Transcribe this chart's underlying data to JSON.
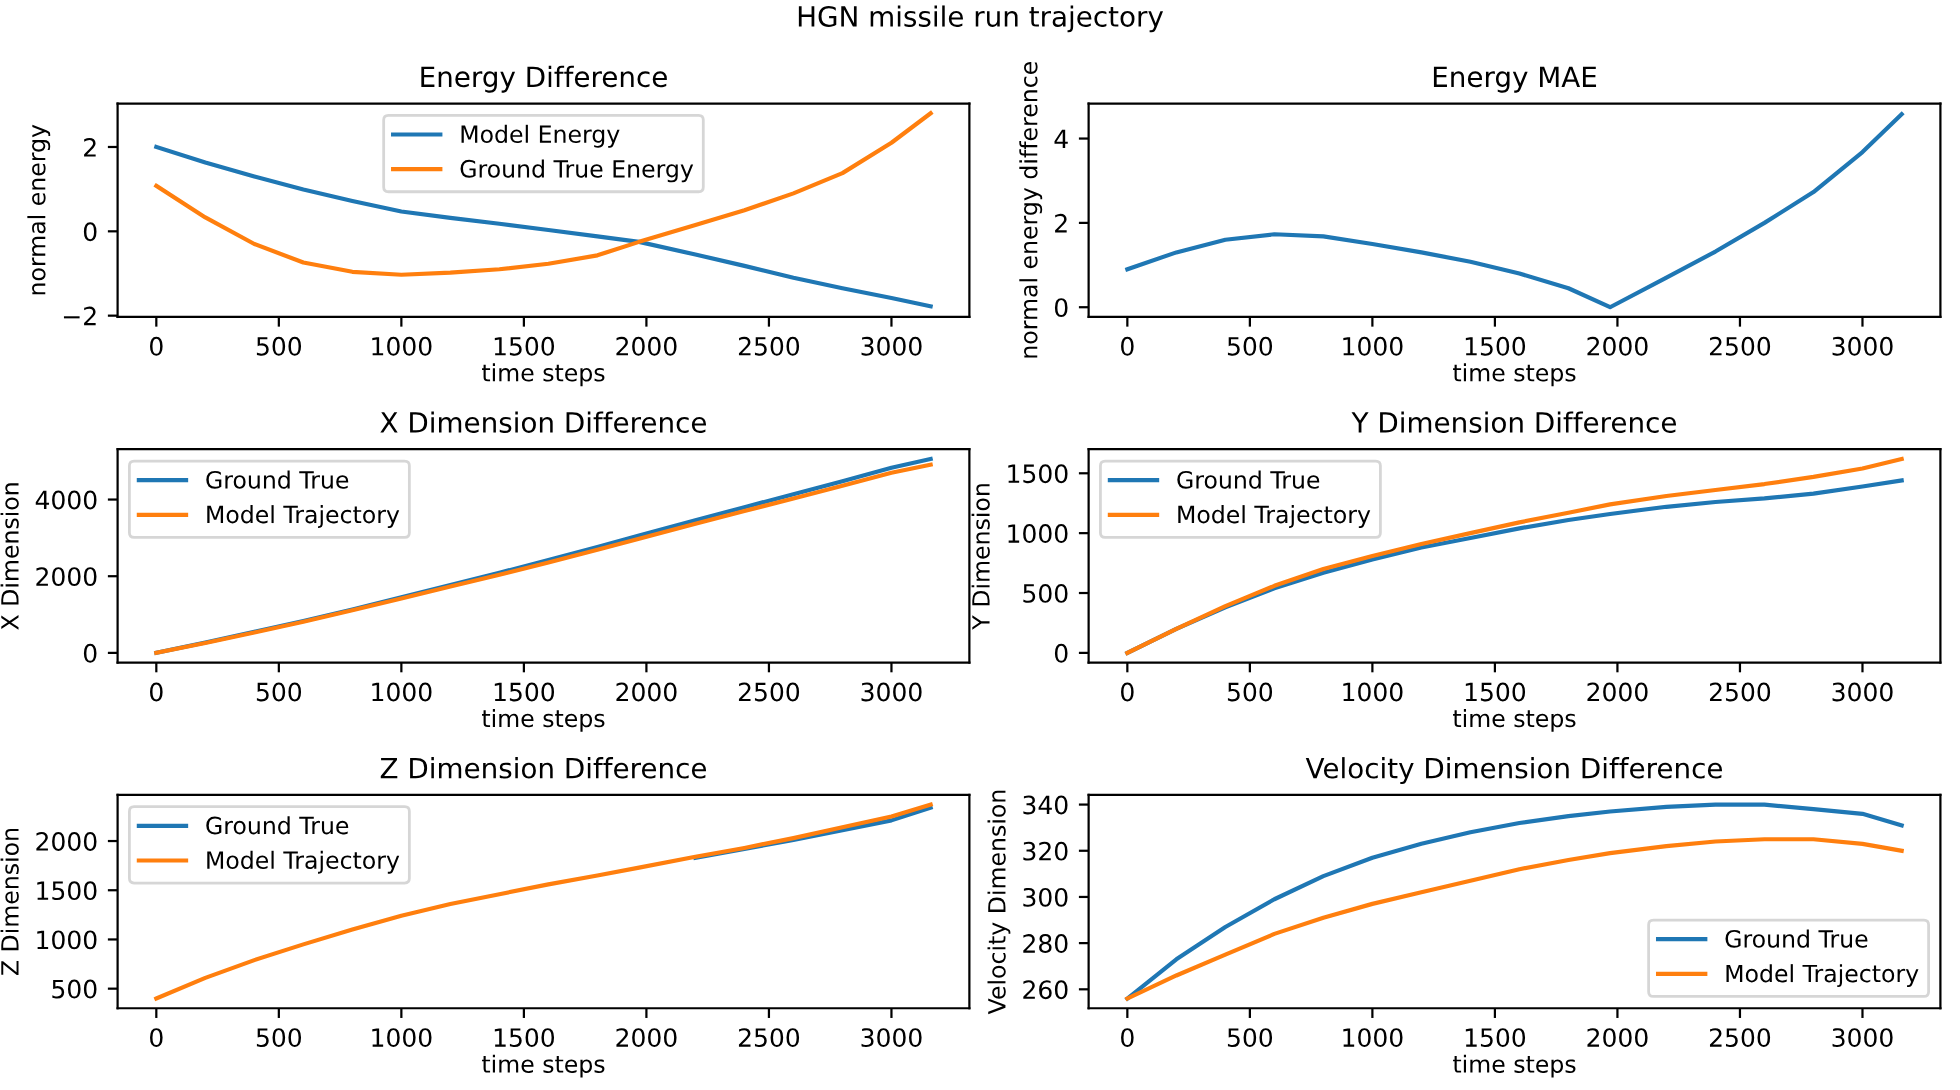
{
  "chart_data": [
    {
      "type": "line",
      "title": "Energy Difference",
      "xlabel": "time steps",
      "ylabel": "normal energy",
      "annotations": [
        "HGN missile run trajectory"
      ],
      "legend": "top",
      "xlim": [
        -158,
        3318
      ],
      "xticks": [
        0,
        500,
        1000,
        1500,
        2000,
        2500,
        3000
      ],
      "ylim": [
        -2.03,
        3.03
      ],
      "yticks": [
        {
          "value": -2,
          "label": "−2"
        },
        0,
        2
      ],
      "x": [
        0,
        200,
        400,
        600,
        800,
        1000,
        1200,
        1400,
        1600,
        1800,
        1970,
        2200,
        2400,
        2600,
        2800,
        3000,
        3160
      ],
      "series": [
        {
          "name": "Model Energy",
          "color": "#1f77b4",
          "values": [
            2.0,
            1.63,
            1.3,
            0.99,
            0.72,
            0.47,
            0.32,
            0.18,
            0.03,
            -0.12,
            -0.25,
            -0.55,
            -0.82,
            -1.1,
            -1.35,
            -1.58,
            -1.78
          ]
        },
        {
          "name": "Ground True Energy",
          "color": "#ff7f0e",
          "values": [
            1.08,
            0.33,
            -0.3,
            -0.74,
            -0.96,
            -1.03,
            -0.98,
            -0.9,
            -0.77,
            -0.57,
            -0.25,
            0.15,
            0.5,
            0.9,
            1.38,
            2.1,
            2.8
          ]
        }
      ]
    },
    {
      "type": "line",
      "title": "Energy MAE",
      "xlabel": "time steps",
      "ylabel": "normal energy difference",
      "xlim": [
        -158,
        3318
      ],
      "xticks": [
        0,
        500,
        1000,
        1500,
        2000,
        2500,
        3000
      ],
      "ylim": [
        -0.23,
        4.83
      ],
      "yticks": [
        0,
        2,
        4
      ],
      "x": [
        0,
        200,
        400,
        600,
        800,
        1000,
        1200,
        1400,
        1600,
        1800,
        1970,
        2200,
        2400,
        2600,
        2800,
        3000,
        3160
      ],
      "series": [
        {
          "color": "#1f77b4",
          "values": [
            0.9,
            1.3,
            1.6,
            1.73,
            1.68,
            1.5,
            1.3,
            1.08,
            0.8,
            0.45,
            0.0,
            0.7,
            1.32,
            2.0,
            2.73,
            3.68,
            4.58
          ]
        }
      ]
    },
    {
      "type": "line",
      "title": "X Dimension Difference",
      "xlabel": "time steps",
      "ylabel": "X Dimension",
      "legend": "top left",
      "xlim": [
        -158,
        3318
      ],
      "xticks": [
        0,
        500,
        1000,
        1500,
        2000,
        2500,
        3000
      ],
      "ylim": [
        -253,
        5313
      ],
      "yticks": [
        0,
        2000,
        4000
      ],
      "x": [
        0,
        200,
        400,
        600,
        800,
        1000,
        1200,
        1400,
        1600,
        1800,
        1970,
        2200,
        2400,
        2600,
        2800,
        3000,
        3160
      ],
      "series": [
        {
          "name": "Ground True",
          "color": "#1f77b4",
          "values": [
            0,
            270,
            550,
            830,
            1130,
            1450,
            1770,
            2090,
            2420,
            2760,
            3060,
            3460,
            3800,
            4140,
            4480,
            4830,
            5060
          ]
        },
        {
          "name": "Model Trajectory",
          "color": "#ff7f0e",
          "values": [
            0,
            260,
            530,
            810,
            1110,
            1420,
            1730,
            2040,
            2360,
            2690,
            2980,
            3370,
            3700,
            4030,
            4360,
            4700,
            4910
          ]
        }
      ]
    },
    {
      "type": "line",
      "title": "Y Dimension Difference",
      "xlabel": "time steps",
      "ylabel": "Y Dimension",
      "legend": "top left",
      "xlim": [
        -158,
        3318
      ],
      "xticks": [
        0,
        500,
        1000,
        1500,
        2000,
        2500,
        3000
      ],
      "ylim": [
        -81,
        1701
      ],
      "yticks": [
        0,
        500,
        1000,
        1500
      ],
      "x": [
        0,
        200,
        400,
        600,
        800,
        1000,
        1200,
        1400,
        1600,
        1800,
        1970,
        2200,
        2400,
        2600,
        2800,
        3000,
        3160
      ],
      "series": [
        {
          "name": "Ground True",
          "color": "#1f77b4",
          "values": [
            0,
            200,
            380,
            540,
            670,
            780,
            880,
            960,
            1040,
            1110,
            1160,
            1220,
            1260,
            1290,
            1330,
            1390,
            1440
          ]
        },
        {
          "name": "Model Trajectory",
          "color": "#ff7f0e",
          "values": [
            0,
            200,
            390,
            560,
            700,
            810,
            910,
            1000,
            1090,
            1170,
            1240,
            1310,
            1360,
            1410,
            1470,
            1540,
            1620
          ]
        }
      ]
    },
    {
      "type": "line",
      "title": "Z Dimension Difference",
      "xlabel": "time steps",
      "ylabel": "Z Dimension",
      "legend": "top left",
      "xlim": [
        -158,
        3318
      ],
      "xticks": [
        0,
        500,
        1000,
        1500,
        2000,
        2500,
        3000
      ],
      "ylim": [
        301,
        2469
      ],
      "yticks": [
        500,
        1000,
        1500,
        2000
      ],
      "x": [
        0,
        200,
        400,
        600,
        800,
        1000,
        1200,
        1400,
        1600,
        1800,
        1970,
        2200,
        2400,
        2600,
        2800,
        3000,
        3160
      ],
      "series": [
        {
          "name": "Ground True",
          "color": "#1f77b4",
          "values": [
            null,
            null,
            null,
            null,
            null,
            null,
            null,
            null,
            null,
            null,
            null,
            1830,
            1920,
            2010,
            2110,
            2210,
            2340
          ]
        },
        {
          "name": "Model Trajectory",
          "color": "#ff7f0e",
          "values": [
            400,
            610,
            790,
            950,
            1100,
            1240,
            1360,
            1460,
            1560,
            1650,
            1730,
            1840,
            1930,
            2030,
            2140,
            2250,
            2370
          ]
        }
      ]
    },
    {
      "type": "line",
      "title": "Velocity Dimension Difference",
      "xlabel": "time steps",
      "ylabel": "Velocity Dimension",
      "legend": "bottom right",
      "xlim": [
        -158,
        3318
      ],
      "xticks": [
        0,
        500,
        1000,
        1500,
        2000,
        2500,
        3000
      ],
      "ylim": [
        251.8,
        344.2
      ],
      "yticks": [
        260,
        280,
        300,
        320,
        340
      ],
      "x": [
        0,
        200,
        400,
        600,
        800,
        1000,
        1200,
        1400,
        1600,
        1800,
        1970,
        2200,
        2400,
        2600,
        2800,
        3000,
        3160
      ],
      "series": [
        {
          "name": "Ground True",
          "color": "#1f77b4",
          "values": [
            256,
            273,
            287,
            299,
            309,
            317,
            323,
            328,
            332,
            335,
            337,
            339,
            340,
            340,
            338,
            336,
            331
          ]
        },
        {
          "name": "Model Trajectory",
          "color": "#ff7f0e",
          "values": [
            256,
            266,
            275,
            284,
            291,
            297,
            302,
            307,
            312,
            316,
            319,
            322,
            324,
            325,
            325,
            323,
            320
          ]
        }
      ]
    }
  ]
}
